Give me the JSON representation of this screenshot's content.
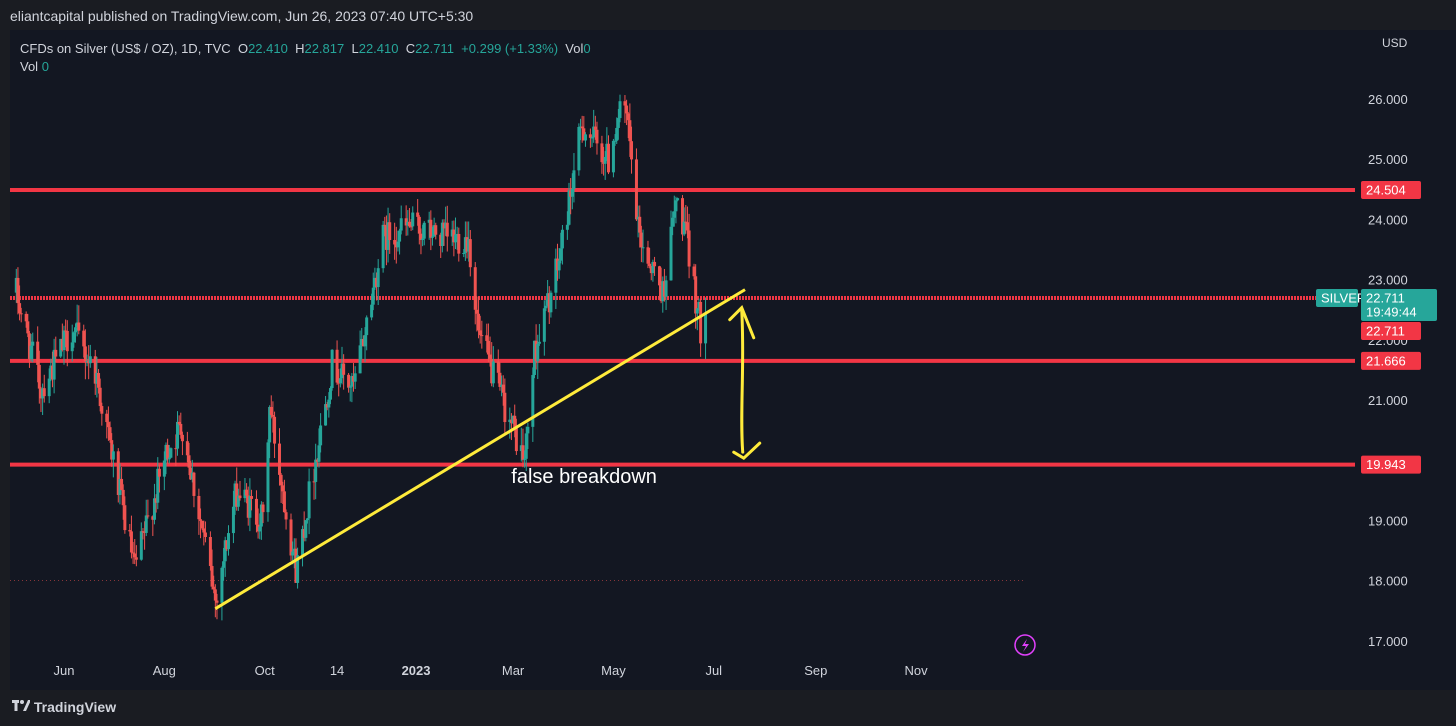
{
  "header": {
    "published": "eliantcapital published on TradingView.com, Jun 26, 2023 07:40 UTC+5:30"
  },
  "legend": {
    "symbol": "CFDs on Silver (US$ / OZ), 1D, TVC",
    "o_label": "O",
    "o": "22.410",
    "h_label": "H",
    "h": "22.817",
    "l_label": "L",
    "l": "22.410",
    "c_label": "C",
    "c": "22.711",
    "change": "+0.299 (+1.33%)",
    "vol_label": "Vol",
    "vol": "0",
    "vol2_label": "Vol",
    "vol2": "0"
  },
  "footer": {
    "brand": "TradingView",
    "logo_icon": "tradingview-logo-icon"
  },
  "colors": {
    "bg": "#131722",
    "up": "#26a69a",
    "down": "#ef5350",
    "level": "#f23645",
    "trend": "#ffeb3b",
    "text": "#d1d4dc",
    "accent": "#e040fb"
  },
  "chart_data": {
    "type": "candlestick",
    "currency": "USD",
    "y_ticks": [
      "26.000",
      "25.000",
      "24.000",
      "23.000",
      "22.000",
      "21.000",
      "19.000",
      "18.000",
      "17.000"
    ],
    "x_ticks": [
      "Jun",
      "Aug",
      "Oct",
      "14",
      "2023",
      "Mar",
      "May",
      "Jul",
      "Sep",
      "Nov"
    ],
    "ylim": [
      16.5,
      26.75
    ],
    "price_labels": {
      "symbol": "SILVER",
      "last": "22.711",
      "countdown": "19:49:44",
      "close": "22.711",
      "levels": [
        "24.504",
        "21.666",
        "19.943"
      ]
    },
    "horizontal_levels": [
      24.504,
      22.711,
      21.666,
      19.943
    ],
    "trendline": {
      "from": [
        "2022-09-01",
        17.55
      ],
      "to": [
        "2023-07-20",
        22.85
      ]
    },
    "annotation": "false breakdown",
    "anchors": [
      [
        "2022-05-03",
        22.8
      ],
      [
        "2022-05-18",
        21.2
      ],
      [
        "2022-06-06",
        22.2
      ],
      [
        "2022-06-20",
        21.5
      ],
      [
        "2022-07-14",
        18.2
      ],
      [
        "2022-08-03",
        20.2
      ],
      [
        "2022-08-12",
        20.6
      ],
      [
        "2022-09-01",
        17.7
      ],
      [
        "2022-09-14",
        19.5
      ],
      [
        "2022-09-30",
        19.0
      ],
      [
        "2022-10-04",
        20.9
      ],
      [
        "2022-10-20",
        18.2
      ],
      [
        "2022-11-11",
        21.6
      ],
      [
        "2022-11-24",
        21.2
      ],
      [
        "2022-12-12",
        23.7
      ],
      [
        "2022-12-28",
        23.9
      ],
      [
        "2023-01-20",
        23.7
      ],
      [
        "2023-02-02",
        23.7
      ],
      [
        "2023-02-08",
        22.1
      ],
      [
        "2023-03-08",
        20.0
      ],
      [
        "2023-03-14",
        21.8
      ],
      [
        "2023-03-28",
        23.2
      ],
      [
        "2023-04-12",
        25.6
      ],
      [
        "2023-04-28",
        25.0
      ],
      [
        "2023-05-05",
        25.9
      ],
      [
        "2023-05-10",
        25.5
      ],
      [
        "2023-05-16",
        23.8
      ],
      [
        "2023-05-31",
        22.8
      ],
      [
        "2023-06-08",
        24.3
      ],
      [
        "2023-06-13",
        23.9
      ],
      [
        "2023-06-23",
        22.2
      ],
      [
        "2023-06-26",
        22.71
      ]
    ]
  }
}
